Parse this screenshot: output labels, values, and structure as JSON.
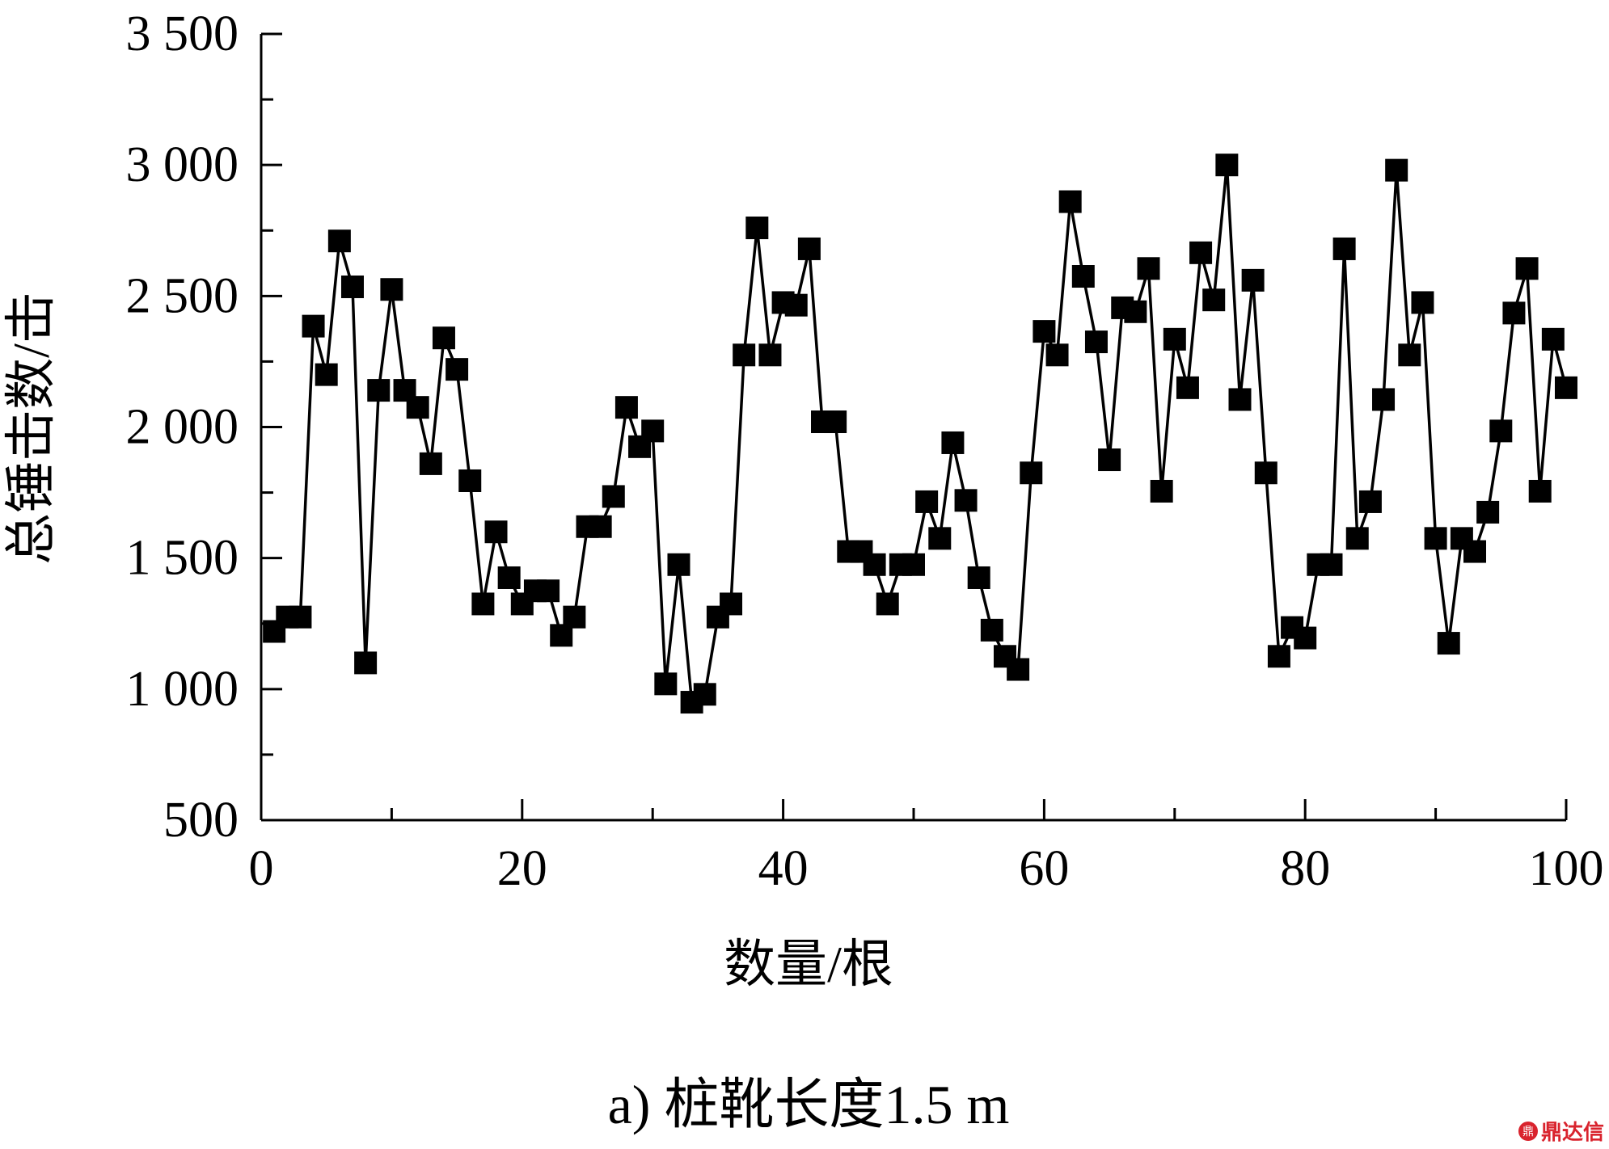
{
  "chart_data": {
    "type": "line",
    "xlabel": "数量/根",
    "ylabel": "总锤击数/击",
    "caption": "a) 桩靴长度1.5 m",
    "xlim": [
      0,
      100
    ],
    "ylim": [
      500,
      3500
    ],
    "x_ticks": [
      "0",
      "20",
      "40",
      "60",
      "80",
      "100"
    ],
    "y_ticks": [
      "500",
      "1 000",
      "1 500",
      "2 000",
      "2 500",
      "3 000",
      "3 500"
    ],
    "marker": "square",
    "color": "#000000",
    "series": [
      {
        "x": [
          1,
          2,
          3,
          4,
          5,
          6,
          7,
          8,
          9,
          10,
          11,
          12,
          13,
          14,
          15,
          16,
          17,
          18,
          19,
          20,
          21,
          22,
          23,
          24,
          25,
          26,
          27,
          28,
          29,
          30,
          31,
          32,
          33,
          34,
          35,
          36,
          37,
          38,
          39,
          40,
          41,
          42,
          43,
          44,
          45,
          46,
          47,
          48,
          49,
          50,
          51,
          52,
          53,
          54,
          55,
          56,
          57,
          58,
          59,
          60,
          61,
          62,
          63,
          64,
          65,
          66,
          67,
          68,
          69,
          70,
          71,
          72,
          73,
          74,
          75,
          76,
          77,
          78,
          79,
          80,
          81,
          82,
          83,
          84,
          85,
          86,
          87,
          88,
          89,
          90,
          91,
          92,
          93,
          94,
          95,
          96,
          97,
          98,
          99,
          100
        ],
        "values": [
          1220,
          1275,
          1275,
          2385,
          2200,
          2710,
          2535,
          1100,
          2140,
          2525,
          2140,
          2075,
          1860,
          2340,
          2220,
          1795,
          1325,
          1600,
          1425,
          1325,
          1375,
          1375,
          1205,
          1275,
          1620,
          1620,
          1735,
          2075,
          1925,
          1985,
          1020,
          1475,
          950,
          980,
          1275,
          1325,
          2275,
          2760,
          2275,
          2475,
          2465,
          2680,
          2020,
          2020,
          1525,
          1525,
          1475,
          1325,
          1475,
          1475,
          1715,
          1575,
          1940,
          1720,
          1425,
          1225,
          1125,
          1075,
          1825,
          2365,
          2275,
          2860,
          2575,
          2325,
          1875,
          2455,
          2440,
          2605,
          1755,
          2335,
          2150,
          2665,
          2485,
          3000,
          2105,
          2560,
          1825,
          1125,
          1235,
          1195,
          1475,
          1475,
          2680,
          1575,
          1715,
          2105,
          2980,
          2275,
          2475,
          1575,
          1175,
          1575,
          1525,
          1675,
          1985,
          2435,
          2605,
          1755,
          2335,
          2150
        ]
      }
    ]
  },
  "watermark": {
    "icon": "鼎",
    "text": "鼎达信"
  }
}
